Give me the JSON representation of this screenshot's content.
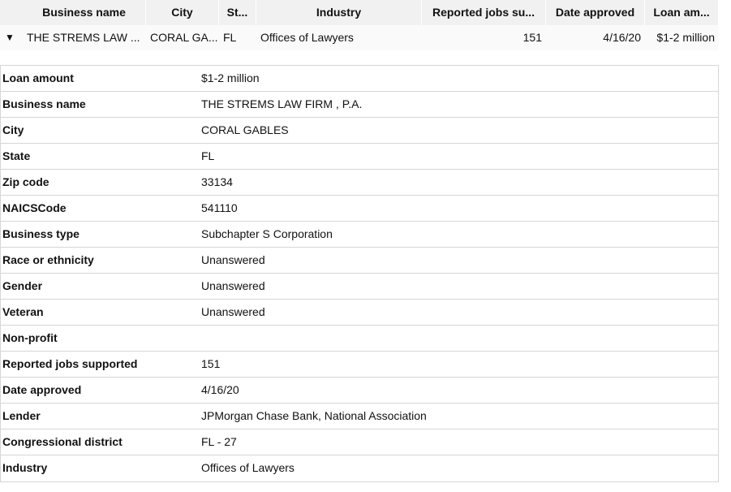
{
  "table": {
    "columns": [
      "Business name",
      "City",
      "St...",
      "Industry",
      "Reported jobs su...",
      "Date approved",
      "Loan am..."
    ],
    "row": [
      "THE STREMS LAW ...",
      "CORAL GA...",
      "FL",
      "Offices of Lawyers",
      151,
      "4/16/20",
      "$1-2 million"
    ]
  },
  "details": [
    {
      "label": "Loan amount",
      "value": "$1-2 million"
    },
    {
      "label": "Business name",
      "value": "THE STREMS LAW FIRM , P.A."
    },
    {
      "label": "City",
      "value": "CORAL GABLES"
    },
    {
      "label": "State",
      "value": "FL"
    },
    {
      "label": "Zip code",
      "value": "33134"
    },
    {
      "label": "NAICSCode",
      "value": "541110"
    },
    {
      "label": "Business type",
      "value": "Subchapter S Corporation"
    },
    {
      "label": "Race or ethnicity",
      "value": "Unanswered"
    },
    {
      "label": "Gender",
      "value": "Unanswered"
    },
    {
      "label": "Veteran",
      "value": "Unanswered"
    },
    {
      "label": "Non-profit"
    },
    {
      "label": "Reported jobs supported",
      "value": 151
    },
    {
      "label": "Date approved",
      "value": "4/16/20"
    },
    {
      "label": "Lender",
      "value": "JPMorgan Chase Bank, National Association"
    },
    {
      "label": "Congressional district",
      "value": "FL - 27"
    },
    {
      "label": "Industry",
      "value": "Offices of Lawyers"
    }
  ]
}
